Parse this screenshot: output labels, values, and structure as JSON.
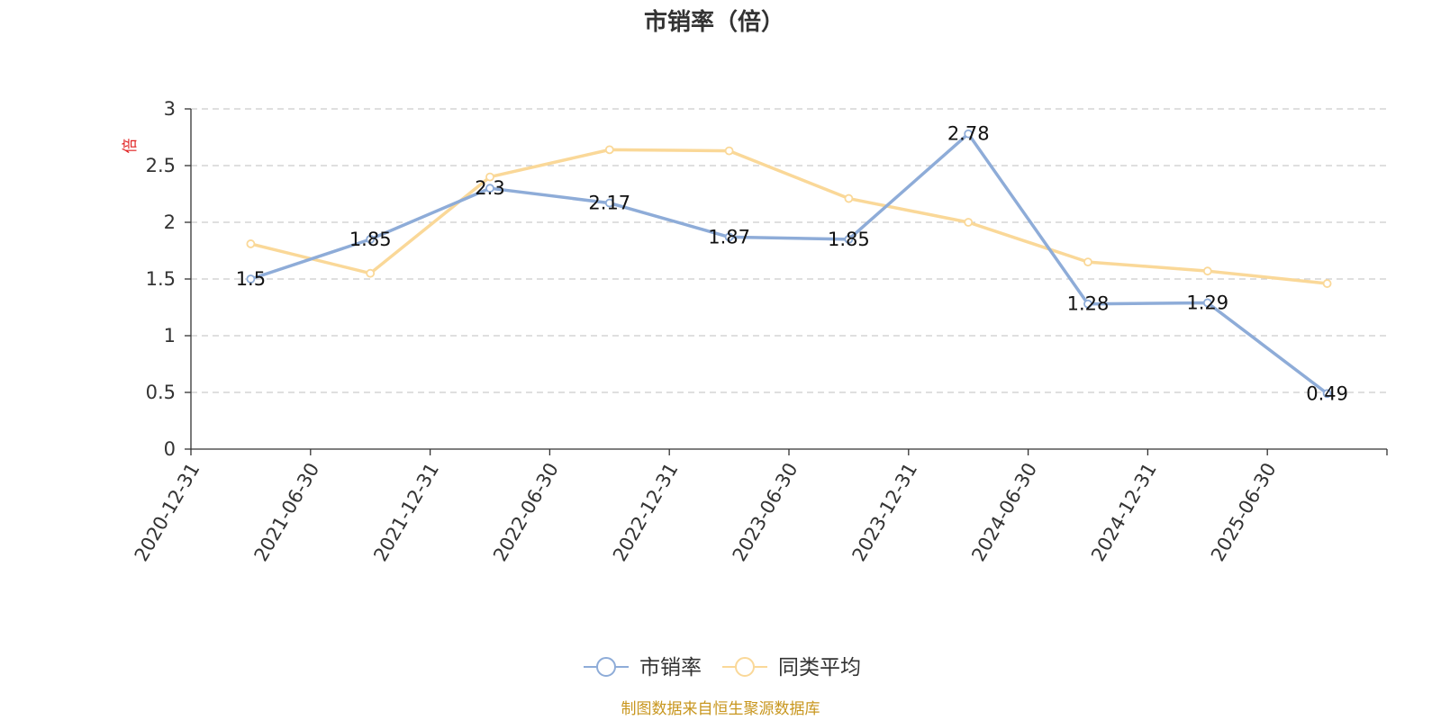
{
  "chart_data": {
    "type": "line",
    "title": "市销率（倍）",
    "ylabel": "倍",
    "xlabel": "",
    "ylim": [
      0,
      3
    ],
    "yticks": [
      0,
      0.5,
      1,
      1.5,
      2,
      2.5,
      3
    ],
    "ytick_labels": [
      "0",
      "0.5",
      "1",
      "1.5",
      "2",
      "2.5",
      "3"
    ],
    "grid": true,
    "legend_position": "bottom-center",
    "categories": [
      "2020-12-31",
      "2021-06-30",
      "2021-12-31",
      "2022-06-30",
      "2022-12-31",
      "2023-06-30",
      "2023-12-31",
      "2024-06-30",
      "2024-12-31",
      "2025-06-30"
    ],
    "series": [
      {
        "name": "市销率",
        "color": "#8eacd8",
        "values": [
          1.5,
          1.85,
          2.3,
          2.17,
          1.87,
          1.85,
          2.78,
          1.28,
          1.29,
          0.49
        ],
        "labels": [
          "1.5",
          "1.85",
          "2.3",
          "2.17",
          "1.87",
          "1.85",
          "2.78",
          "1.28",
          "1.29",
          "0.49"
        ]
      },
      {
        "name": "同类平均",
        "color": "#fad898",
        "values": [
          1.81,
          1.55,
          2.4,
          2.64,
          2.63,
          2.21,
          2.0,
          1.65,
          1.57,
          1.46
        ]
      }
    ]
  },
  "footer": {
    "source": "制图数据来自恒生聚源数据库"
  }
}
